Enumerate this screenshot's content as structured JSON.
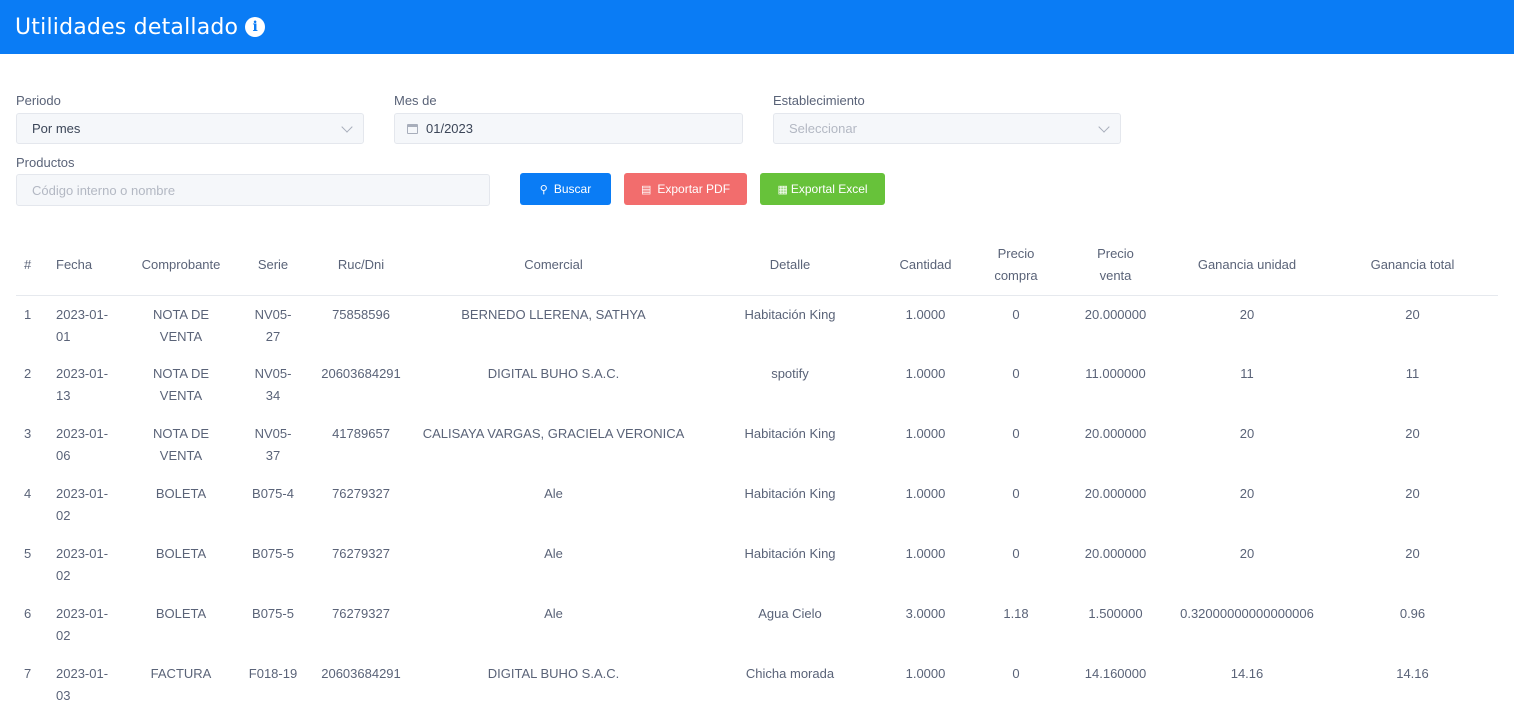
{
  "header": {
    "title": "Utilidades detallado",
    "info_icon": "info-circle-icon"
  },
  "filters": {
    "periodo_label": "Periodo",
    "periodo_value": "Por mes",
    "mes_label": "Mes de",
    "mes_value": "01/2023",
    "establecimiento_label": "Establecimiento",
    "establecimiento_placeholder": "Seleccionar",
    "productos_label": "Productos",
    "productos_placeholder": "Código interno o nombre"
  },
  "buttons": {
    "buscar": "Buscar",
    "exportar_pdf": "Exportar PDF",
    "exportar_excel": "Exportal Excel"
  },
  "colors": {
    "header": "#0a7cf5",
    "buscar": "#0a7cf5",
    "pdf": "#f26d6d",
    "excel": "#67c23a"
  },
  "table": {
    "headers": {
      "num": "#",
      "fecha": "Fecha",
      "comprobante": "Comprobante",
      "serie": "Serie",
      "ruc": "Ruc/Dni",
      "comercial": "Comercial",
      "detalle": "Detalle",
      "cantidad": "Cantidad",
      "precio_compra": "Precio compra",
      "precio_venta": "Precio venta",
      "ganancia_unidad": "Ganancia unidad",
      "ganancia_total": "Ganancia total"
    },
    "rows": [
      [
        "1",
        "2023-01-01",
        "NOTA DE VENTA",
        "NV05-27",
        "75858596",
        "BERNEDO LLERENA, SATHYA",
        "Habitación King",
        "1.0000",
        "0",
        "20.000000",
        "20",
        "20"
      ],
      [
        "2",
        "2023-01-13",
        "NOTA DE VENTA",
        "NV05-34",
        "20603684291",
        "DIGITAL BUHO S.A.C.",
        "spotify",
        "1.0000",
        "0",
        "11.000000",
        "11",
        "11"
      ],
      [
        "3",
        "2023-01-06",
        "NOTA DE VENTA",
        "NV05-37",
        "41789657",
        "CALISAYA VARGAS, GRACIELA VERONICA",
        "Habitación King",
        "1.0000",
        "0",
        "20.000000",
        "20",
        "20"
      ],
      [
        "4",
        "2023-01-02",
        "BOLETA",
        "B075-4",
        "76279327",
        "Ale",
        "Habitación King",
        "1.0000",
        "0",
        "20.000000",
        "20",
        "20"
      ],
      [
        "5",
        "2023-01-02",
        "BOLETA",
        "B075-5",
        "76279327",
        "Ale",
        "Habitación King",
        "1.0000",
        "0",
        "20.000000",
        "20",
        "20"
      ],
      [
        "6",
        "2023-01-02",
        "BOLETA",
        "B075-5",
        "76279327",
        "Ale",
        "Agua Cielo",
        "3.0000",
        "1.18",
        "1.500000",
        "0.32000000000000006",
        "0.96"
      ],
      [
        "7",
        "2023-01-03",
        "FACTURA",
        "F018-19",
        "20603684291",
        "DIGITAL BUHO S.A.C.",
        "Chicha morada",
        "1.0000",
        "0",
        "14.160000",
        "14.16",
        "14.16"
      ]
    ]
  }
}
